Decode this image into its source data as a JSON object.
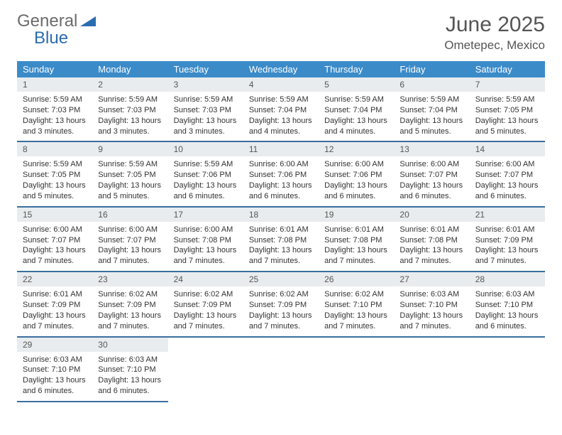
{
  "logo": {
    "text1": "General",
    "text2": "Blue"
  },
  "title": "June 2025",
  "location": "Ometepec, Mexico",
  "colors": {
    "header_bg": "#3b8bc9",
    "header_text": "#ffffff",
    "daynum_bg": "#e9ecef",
    "row_border": "#3b6fa0",
    "title_color": "#555555",
    "body_text": "#333333",
    "logo_gray": "#6b6b6b",
    "logo_blue": "#2a6cb0"
  },
  "weekdays": [
    "Sunday",
    "Monday",
    "Tuesday",
    "Wednesday",
    "Thursday",
    "Friday",
    "Saturday"
  ],
  "days": [
    {
      "n": 1,
      "sr": "5:59 AM",
      "ss": "7:03 PM",
      "dh": 13,
      "dm": 3
    },
    {
      "n": 2,
      "sr": "5:59 AM",
      "ss": "7:03 PM",
      "dh": 13,
      "dm": 3
    },
    {
      "n": 3,
      "sr": "5:59 AM",
      "ss": "7:03 PM",
      "dh": 13,
      "dm": 3
    },
    {
      "n": 4,
      "sr": "5:59 AM",
      "ss": "7:04 PM",
      "dh": 13,
      "dm": 4
    },
    {
      "n": 5,
      "sr": "5:59 AM",
      "ss": "7:04 PM",
      "dh": 13,
      "dm": 4
    },
    {
      "n": 6,
      "sr": "5:59 AM",
      "ss": "7:04 PM",
      "dh": 13,
      "dm": 5
    },
    {
      "n": 7,
      "sr": "5:59 AM",
      "ss": "7:05 PM",
      "dh": 13,
      "dm": 5
    },
    {
      "n": 8,
      "sr": "5:59 AM",
      "ss": "7:05 PM",
      "dh": 13,
      "dm": 5
    },
    {
      "n": 9,
      "sr": "5:59 AM",
      "ss": "7:05 PM",
      "dh": 13,
      "dm": 5
    },
    {
      "n": 10,
      "sr": "5:59 AM",
      "ss": "7:06 PM",
      "dh": 13,
      "dm": 6
    },
    {
      "n": 11,
      "sr": "6:00 AM",
      "ss": "7:06 PM",
      "dh": 13,
      "dm": 6
    },
    {
      "n": 12,
      "sr": "6:00 AM",
      "ss": "7:06 PM",
      "dh": 13,
      "dm": 6
    },
    {
      "n": 13,
      "sr": "6:00 AM",
      "ss": "7:07 PM",
      "dh": 13,
      "dm": 6
    },
    {
      "n": 14,
      "sr": "6:00 AM",
      "ss": "7:07 PM",
      "dh": 13,
      "dm": 6
    },
    {
      "n": 15,
      "sr": "6:00 AM",
      "ss": "7:07 PM",
      "dh": 13,
      "dm": 7
    },
    {
      "n": 16,
      "sr": "6:00 AM",
      "ss": "7:07 PM",
      "dh": 13,
      "dm": 7
    },
    {
      "n": 17,
      "sr": "6:00 AM",
      "ss": "7:08 PM",
      "dh": 13,
      "dm": 7
    },
    {
      "n": 18,
      "sr": "6:01 AM",
      "ss": "7:08 PM",
      "dh": 13,
      "dm": 7
    },
    {
      "n": 19,
      "sr": "6:01 AM",
      "ss": "7:08 PM",
      "dh": 13,
      "dm": 7
    },
    {
      "n": 20,
      "sr": "6:01 AM",
      "ss": "7:08 PM",
      "dh": 13,
      "dm": 7
    },
    {
      "n": 21,
      "sr": "6:01 AM",
      "ss": "7:09 PM",
      "dh": 13,
      "dm": 7
    },
    {
      "n": 22,
      "sr": "6:01 AM",
      "ss": "7:09 PM",
      "dh": 13,
      "dm": 7
    },
    {
      "n": 23,
      "sr": "6:02 AM",
      "ss": "7:09 PM",
      "dh": 13,
      "dm": 7
    },
    {
      "n": 24,
      "sr": "6:02 AM",
      "ss": "7:09 PM",
      "dh": 13,
      "dm": 7
    },
    {
      "n": 25,
      "sr": "6:02 AM",
      "ss": "7:09 PM",
      "dh": 13,
      "dm": 7
    },
    {
      "n": 26,
      "sr": "6:02 AM",
      "ss": "7:10 PM",
      "dh": 13,
      "dm": 7
    },
    {
      "n": 27,
      "sr": "6:03 AM",
      "ss": "7:10 PM",
      "dh": 13,
      "dm": 7
    },
    {
      "n": 28,
      "sr": "6:03 AM",
      "ss": "7:10 PM",
      "dh": 13,
      "dm": 6
    },
    {
      "n": 29,
      "sr": "6:03 AM",
      "ss": "7:10 PM",
      "dh": 13,
      "dm": 6
    },
    {
      "n": 30,
      "sr": "6:03 AM",
      "ss": "7:10 PM",
      "dh": 13,
      "dm": 6
    }
  ],
  "labels": {
    "sunrise": "Sunrise:",
    "sunset": "Sunset:",
    "daylight_prefix": "Daylight:",
    "hours_word": "hours",
    "and_word": "and",
    "minutes_word": "minutes."
  },
  "layout": {
    "first_weekday_index": 0,
    "weeks": 5,
    "cell_fontsize": 11,
    "header_fontsize": 13,
    "title_fontsize": 30,
    "location_fontsize": 17
  }
}
